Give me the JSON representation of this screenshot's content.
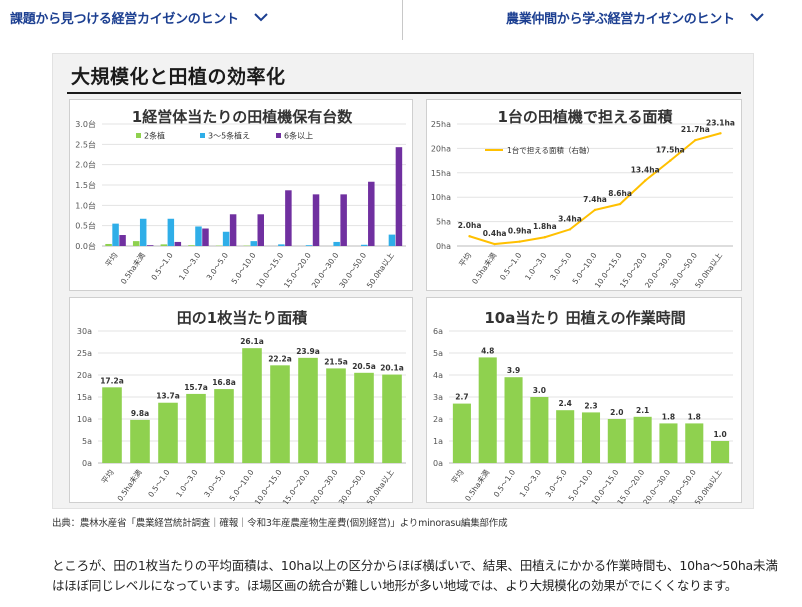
{
  "nav": {
    "item1": "課題から見つける経営カイゼンのヒント",
    "item2": "農業仲間から学ぶ経営カイゼンのヒント"
  },
  "figure": {
    "title": "大規模化と田植の効率化"
  },
  "colors": {
    "nav_blue": "#1c3f91",
    "green": "#8fd14f",
    "cyan": "#2faee8",
    "purple": "#7030a0",
    "orange": "#ffc000",
    "grid": "#e3e3e3"
  },
  "chart_data": [
    {
      "type": "bar",
      "title": "1経営体当たりの田植機保有台数",
      "categories": [
        "平均",
        "0.5ha未満",
        "0.5～1.0",
        "1.0～3.0",
        "3.0～5.0",
        "5.0～10.0",
        "10.0～15.0",
        "15.0～20.0",
        "20.0～30.0",
        "30.0～50.0",
        "50.0ha以上"
      ],
      "series": [
        {
          "name": "2条植",
          "values": [
            0.05,
            0.12,
            0.04,
            0.02,
            0.01,
            0.01,
            0.0,
            0.0,
            0.0,
            0.0,
            0.0
          ]
        },
        {
          "name": "3～5条植え",
          "values": [
            0.55,
            0.67,
            0.67,
            0.48,
            0.35,
            0.12,
            0.04,
            0.02,
            0.1,
            0.03,
            0.28
          ]
        },
        {
          "name": "6条以上",
          "values": [
            0.27,
            0.02,
            0.1,
            0.43,
            0.78,
            0.78,
            1.37,
            1.27,
            1.27,
            1.58,
            2.43
          ]
        }
      ],
      "ytick_labels": [
        "0.0台",
        "0.5台",
        "1.0台",
        "1.5台",
        "2.0台",
        "2.5台",
        "3.0台"
      ],
      "ylim": [
        0,
        3.0
      ],
      "legend": "top"
    },
    {
      "type": "line",
      "title": "1台の田植機で担える面積",
      "categories": [
        "平均",
        "0.5ha未満",
        "0.5～1.0",
        "1.0～3.0",
        "3.0～5.0",
        "5.0～10.0",
        "10.0～15.0",
        "15.0～20.0",
        "20.0～30.0",
        "30.0～50.0",
        "50.0ha以上"
      ],
      "series": [
        {
          "name": "1台で担える面積（右軸）",
          "values": [
            2.0,
            0.4,
            0.9,
            1.8,
            3.4,
            7.4,
            8.6,
            13.4,
            17.5,
            21.7,
            23.1
          ]
        }
      ],
      "data_labels": [
        "2.0ha",
        "0.4ha",
        "0.9ha",
        "1.8ha",
        "3.4ha",
        "7.4ha",
        "8.6ha",
        "13.4ha",
        "17.5ha",
        "21.7ha",
        "23.1ha"
      ],
      "ytick_labels": [
        "0ha",
        "5ha",
        "10ha",
        "15ha",
        "20ha",
        "25ha"
      ],
      "ylim": [
        0,
        25
      ],
      "legend": "top"
    },
    {
      "type": "bar",
      "title": "田の1枚当たり面積",
      "categories": [
        "平均",
        "0.5ha未満",
        "0.5～1.0",
        "1.0～3.0",
        "3.0～5.0",
        "5.0～10.0",
        "10.0～15.0",
        "15.0～20.0",
        "20.0～30.0",
        "30.0～50.0",
        "50.0ha以上"
      ],
      "values": [
        17.2,
        9.8,
        13.7,
        15.7,
        16.8,
        26.1,
        22.2,
        23.9,
        21.5,
        20.5,
        20.1
      ],
      "data_labels": [
        "17.2a",
        "9.8a",
        "13.7a",
        "15.7a",
        "16.8a",
        "26.1a",
        "22.2a",
        "23.9a",
        "21.5a",
        "20.5a",
        "20.1a"
      ],
      "ytick_labels": [
        "0a",
        "5a",
        "10a",
        "15a",
        "20a",
        "25a",
        "30a"
      ],
      "ylim": [
        0,
        30
      ]
    },
    {
      "type": "bar",
      "title": "10a当たり 田植えの作業時間",
      "categories": [
        "平均",
        "0.5ha未満",
        "0.5～1.0",
        "1.0～3.0",
        "3.0～5.0",
        "5.0～10.0",
        "10.0～15.0",
        "15.0～20.0",
        "20.0～30.0",
        "30.0～50.0",
        "50.0ha以上"
      ],
      "values": [
        2.7,
        4.8,
        3.9,
        3.0,
        2.4,
        2.3,
        2.0,
        2.1,
        1.8,
        1.8,
        1.0
      ],
      "data_labels": [
        "2.7",
        "4.8",
        "3.9",
        "3.0",
        "2.4",
        "2.3",
        "2.0",
        "2.1",
        "1.8",
        "1.8",
        "1.0"
      ],
      "ytick_labels": [
        "0a",
        "1a",
        "2a",
        "3a",
        "4a",
        "5a",
        "6a"
      ],
      "ylim": [
        0,
        6
      ]
    }
  ],
  "caption": "出典：農林水産省「農業経営統計調査｜確報｜令和3年産農産物生産費(個別経営)」よりminorasu編集部作成",
  "paragraph": {
    "line1": "ところが、田の1枚当たりの平均面積は、10ha以上の区分からほぼ横ばいで、結果、田植えにかかる作業時間も、10ha～50ha未満",
    "line2": "はほぼ同じレベルになっています。ほ場区画の統合が難しい地形が多い地域では、より大規模化の効果がでにくくなります。"
  }
}
